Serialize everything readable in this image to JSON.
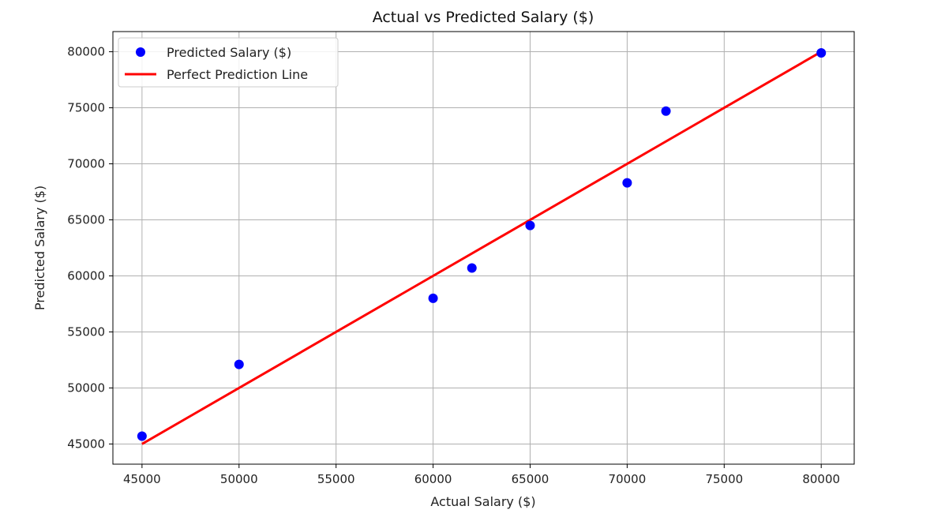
{
  "chart_data": {
    "type": "scatter",
    "title": "Actual vs Predicted Salary ($)",
    "xlabel": "Actual Salary ($)",
    "ylabel": "Predicted Salary ($)",
    "xlim": [
      43500,
      81700
    ],
    "ylim": [
      43200,
      81800
    ],
    "xticks": [
      45000,
      50000,
      55000,
      60000,
      65000,
      70000,
      75000,
      80000
    ],
    "yticks": [
      45000,
      50000,
      55000,
      60000,
      65000,
      70000,
      75000,
      80000
    ],
    "xtick_labels": [
      "45000",
      "50000",
      "55000",
      "60000",
      "65000",
      "70000",
      "75000",
      "80000"
    ],
    "ytick_labels": [
      "45000",
      "50000",
      "55000",
      "60000",
      "65000",
      "70000",
      "75000",
      "80000"
    ],
    "grid": true,
    "legend_position": "top-left",
    "series": [
      {
        "name": "Predicted Salary ($)",
        "kind": "scatter",
        "color": "#0000ff",
        "x": [
          45000,
          50000,
          60000,
          62000,
          65000,
          70000,
          72000,
          80000
        ],
        "y": [
          45700,
          52100,
          58000,
          60700,
          64500,
          68300,
          74700,
          79900
        ]
      },
      {
        "name": "Perfect Prediction Line",
        "kind": "line",
        "color": "#ff0000",
        "x": [
          45000,
          80000
        ],
        "y": [
          45000,
          80000
        ]
      }
    ]
  }
}
